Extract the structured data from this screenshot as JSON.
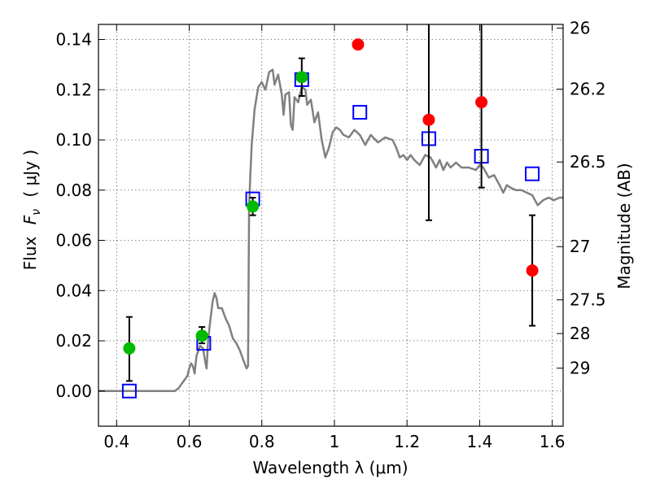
{
  "chart_data": {
    "type": "scatter",
    "title": "",
    "xlabel": "Wavelength  λ (μm)",
    "ylabel_prefix": "Flux",
    "ylabel_var": "F",
    "ylabel_sub": "ν",
    "ylabel_units": "( μJy )",
    "y2label": "Magnitude (AB)",
    "xlim": [
      0.35,
      1.63
    ],
    "ylim": [
      -0.014,
      0.146
    ],
    "grid": true,
    "x_ticks": [
      0.4,
      0.6,
      0.8,
      1.0,
      1.2,
      1.4,
      1.6
    ],
    "x_tick_labels": [
      "0.4",
      "0.6",
      "0.8",
      "1",
      "1.2",
      "1.4",
      "1.6"
    ],
    "y_ticks": [
      0.0,
      0.02,
      0.04,
      0.06,
      0.08,
      0.1,
      0.12,
      0.14
    ],
    "y_tick_labels": [
      "0.00",
      "0.02",
      "0.04",
      "0.06",
      "0.08",
      "0.10",
      "0.12",
      "0.14"
    ],
    "y2_ticks": [
      {
        "label": "26",
        "flux": 0.1445
      },
      {
        "label": "26.2",
        "flux": 0.1202
      },
      {
        "label": "26.5",
        "flux": 0.0912
      },
      {
        "label": "27",
        "flux": 0.0575
      },
      {
        "label": "27.5",
        "flux": 0.0363
      },
      {
        "label": "28",
        "flux": 0.0229
      },
      {
        "label": "29",
        "flux": 0.0091
      }
    ],
    "series": [
      {
        "kind": "line",
        "color": "#808080",
        "points": [
          [
            0.35,
            0.0
          ],
          [
            0.56,
            0.0
          ],
          [
            0.57,
            0.001
          ],
          [
            0.585,
            0.004
          ],
          [
            0.595,
            0.006
          ],
          [
            0.6,
            0.009
          ],
          [
            0.605,
            0.011
          ],
          [
            0.61,
            0.01
          ],
          [
            0.615,
            0.007
          ],
          [
            0.62,
            0.014
          ],
          [
            0.625,
            0.016
          ],
          [
            0.63,
            0.018
          ],
          [
            0.638,
            0.017
          ],
          [
            0.645,
            0.011
          ],
          [
            0.648,
            0.009
          ],
          [
            0.652,
            0.02
          ],
          [
            0.658,
            0.028
          ],
          [
            0.665,
            0.036
          ],
          [
            0.67,
            0.039
          ],
          [
            0.675,
            0.037
          ],
          [
            0.68,
            0.033
          ],
          [
            0.69,
            0.033
          ],
          [
            0.7,
            0.029
          ],
          [
            0.71,
            0.026
          ],
          [
            0.72,
            0.021
          ],
          [
            0.73,
            0.019
          ],
          [
            0.74,
            0.016
          ],
          [
            0.75,
            0.012
          ],
          [
            0.755,
            0.01
          ],
          [
            0.758,
            0.009
          ],
          [
            0.762,
            0.01
          ],
          [
            0.765,
            0.073
          ],
          [
            0.768,
            0.085
          ],
          [
            0.772,
            0.098
          ],
          [
            0.78,
            0.112
          ],
          [
            0.79,
            0.121
          ],
          [
            0.8,
            0.123
          ],
          [
            0.81,
            0.12
          ],
          [
            0.82,
            0.127
          ],
          [
            0.83,
            0.128
          ],
          [
            0.835,
            0.122
          ],
          [
            0.845,
            0.126
          ],
          [
            0.855,
            0.118
          ],
          [
            0.86,
            0.11
          ],
          [
            0.865,
            0.118
          ],
          [
            0.875,
            0.119
          ],
          [
            0.88,
            0.106
          ],
          [
            0.885,
            0.104
          ],
          [
            0.89,
            0.117
          ],
          [
            0.9,
            0.115
          ],
          [
            0.91,
            0.121
          ],
          [
            0.92,
            0.12
          ],
          [
            0.925,
            0.114
          ],
          [
            0.935,
            0.116
          ],
          [
            0.945,
            0.107
          ],
          [
            0.955,
            0.111
          ],
          [
            0.965,
            0.1
          ],
          [
            0.975,
            0.093
          ],
          [
            0.985,
            0.097
          ],
          [
            0.995,
            0.103
          ],
          [
            1.005,
            0.105
          ],
          [
            1.015,
            0.104
          ],
          [
            1.025,
            0.102
          ],
          [
            1.04,
            0.101
          ],
          [
            1.055,
            0.104
          ],
          [
            1.07,
            0.102
          ],
          [
            1.085,
            0.098
          ],
          [
            1.1,
            0.102
          ],
          [
            1.12,
            0.099
          ],
          [
            1.14,
            0.101
          ],
          [
            1.16,
            0.1
          ],
          [
            1.17,
            0.097
          ],
          [
            1.18,
            0.093
          ],
          [
            1.19,
            0.094
          ],
          [
            1.2,
            0.092
          ],
          [
            1.21,
            0.094
          ],
          [
            1.22,
            0.092
          ],
          [
            1.235,
            0.09
          ],
          [
            1.25,
            0.094
          ],
          [
            1.265,
            0.093
          ],
          [
            1.28,
            0.089
          ],
          [
            1.29,
            0.092
          ],
          [
            1.3,
            0.088
          ],
          [
            1.31,
            0.091
          ],
          [
            1.32,
            0.089
          ],
          [
            1.335,
            0.091
          ],
          [
            1.35,
            0.089
          ],
          [
            1.37,
            0.089
          ],
          [
            1.39,
            0.088
          ],
          [
            1.4,
            0.09
          ],
          [
            1.41,
            0.089
          ],
          [
            1.425,
            0.085
          ],
          [
            1.44,
            0.086
          ],
          [
            1.455,
            0.082
          ],
          [
            1.465,
            0.079
          ],
          [
            1.475,
            0.082
          ],
          [
            1.485,
            0.081
          ],
          [
            1.5,
            0.08
          ],
          [
            1.515,
            0.08
          ],
          [
            1.53,
            0.079
          ],
          [
            1.545,
            0.078
          ],
          [
            1.56,
            0.074
          ],
          [
            1.575,
            0.076
          ],
          [
            1.59,
            0.077
          ],
          [
            1.605,
            0.076
          ],
          [
            1.62,
            0.077
          ],
          [
            1.63,
            0.077
          ]
        ]
      },
      {
        "kind": "open-square",
        "color": "#0000ff",
        "points": [
          [
            0.435,
            0.0
          ],
          [
            0.64,
            0.019
          ],
          [
            0.775,
            0.0765
          ],
          [
            0.91,
            0.124
          ],
          [
            1.07,
            0.111
          ],
          [
            1.26,
            0.1005
          ],
          [
            1.405,
            0.0935
          ],
          [
            1.545,
            0.0865
          ]
        ]
      },
      {
        "kind": "filled-circle",
        "color": "#00bb00",
        "points": [
          {
            "x": 0.435,
            "y": 0.017,
            "err_lo": 0.004,
            "err_hi": 0.0295
          },
          {
            "x": 0.635,
            "y": 0.022,
            "err_lo": 0.019,
            "err_hi": 0.0255
          },
          {
            "x": 0.775,
            "y": 0.0735,
            "err_lo": 0.07,
            "err_hi": 0.077
          },
          {
            "x": 0.91,
            "y": 0.125,
            "err_lo": 0.1175,
            "err_hi": 0.1325
          }
        ]
      },
      {
        "kind": "filled-circle",
        "color": "#ff0000",
        "points": [
          {
            "x": 1.065,
            "y": 0.138,
            "err_lo": null,
            "err_hi": null
          },
          {
            "x": 1.26,
            "y": 0.108,
            "err_lo": 0.068,
            "err_hi": null
          },
          {
            "x": 1.405,
            "y": 0.115,
            "err_lo": 0.081,
            "err_hi": null
          },
          {
            "x": 1.545,
            "y": 0.048,
            "err_lo": 0.026,
            "err_hi": 0.07
          }
        ]
      }
    ]
  }
}
